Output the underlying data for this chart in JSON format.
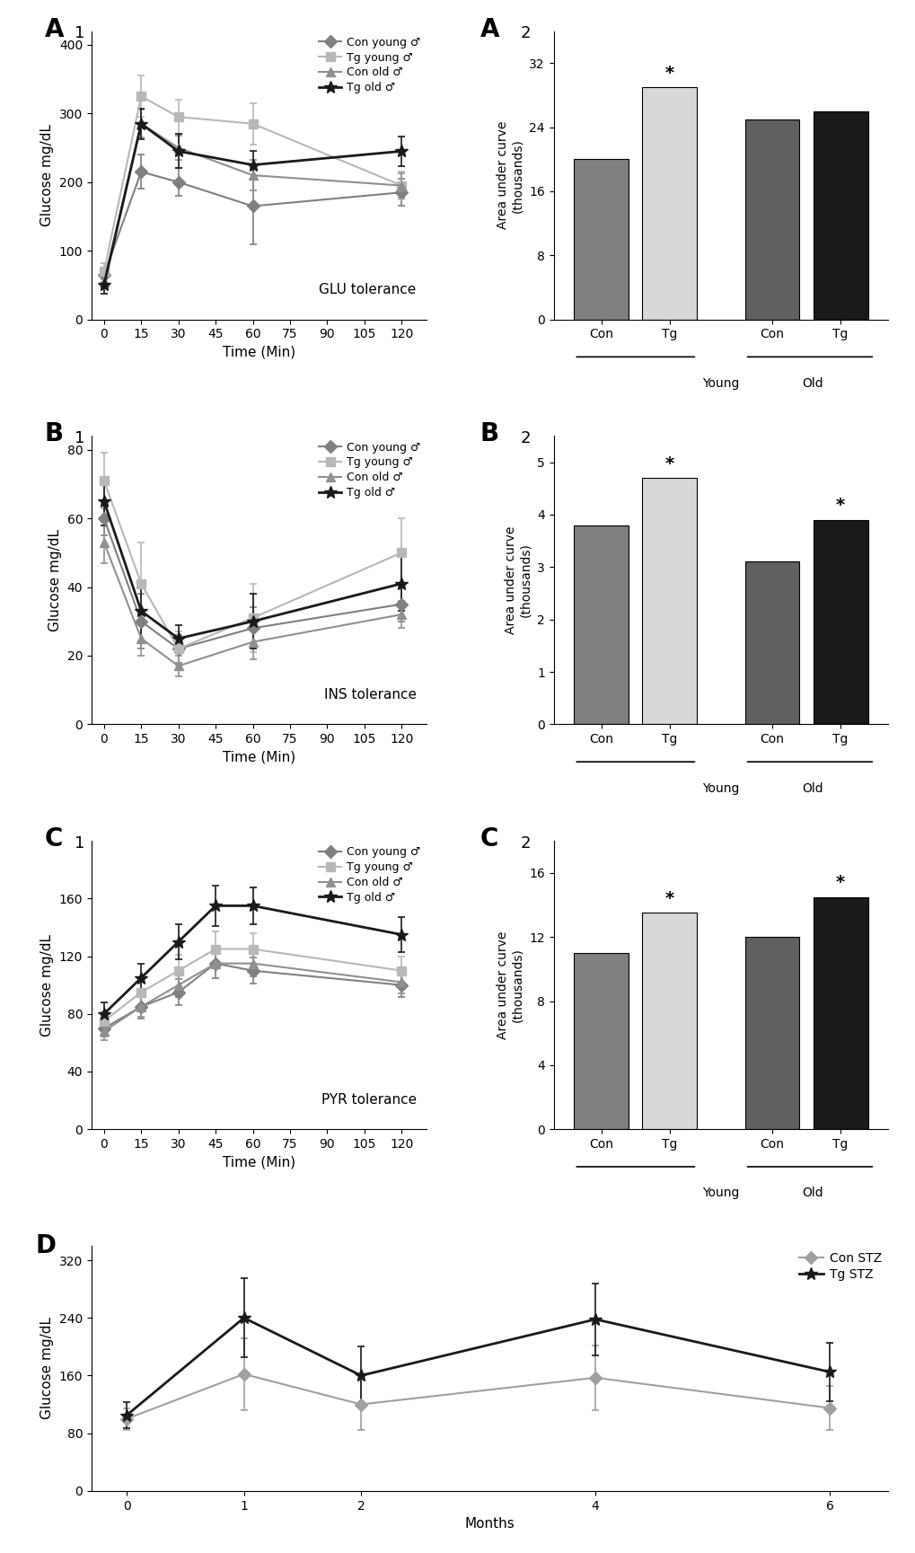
{
  "A1": {
    "xlabel": "Time (Min)",
    "ylabel": "Glucose mg/dL",
    "label": "GLU tolerance",
    "x": [
      0,
      15,
      30,
      60,
      120
    ],
    "series": {
      "Con young": {
        "y": [
          65,
          215,
          200,
          165,
          185
        ],
        "err": [
          10,
          25,
          20,
          55,
          20
        ],
        "color": "#808080",
        "marker": "D",
        "lw": 1.5
      },
      "Tg young": {
        "y": [
          70,
          325,
          295,
          285,
          195
        ],
        "err": [
          12,
          30,
          25,
          30,
          20
        ],
        "color": "#b8b8b8",
        "marker": "s",
        "lw": 1.5
      },
      "Con old": {
        "y": [
          55,
          285,
          250,
          210,
          195
        ],
        "err": [
          8,
          20,
          18,
          22,
          18
        ],
        "color": "#909090",
        "marker": "^",
        "lw": 1.5
      },
      "Tg old": {
        "y": [
          50,
          285,
          245,
          225,
          245
        ],
        "err": [
          12,
          22,
          25,
          20,
          22
        ],
        "color": "#1a1a1a",
        "marker": "*",
        "lw": 2.0
      }
    },
    "ylim": [
      0,
      420
    ],
    "yticks": [
      0,
      100,
      200,
      300,
      400
    ]
  },
  "A2": {
    "ylabel": "Area under curve\n(thousands)",
    "categories": [
      "Con",
      "Tg",
      "Con",
      "Tg"
    ],
    "values": [
      20,
      29,
      25,
      26
    ],
    "colors": [
      "#808080",
      "#d8d8d8",
      "#606060",
      "#1a1a1a"
    ],
    "star": [
      false,
      true,
      false,
      false
    ],
    "ylim": [
      0,
      36
    ],
    "yticks": [
      0,
      8,
      16,
      24,
      32
    ],
    "group_labels": [
      "Young",
      "Old"
    ]
  },
  "B1": {
    "xlabel": "Time (Min)",
    "ylabel": "Glucose mg/dL",
    "label": "INS tolerance",
    "x": [
      0,
      15,
      30,
      60,
      120
    ],
    "series": {
      "Con young": {
        "y": [
          60,
          30,
          22,
          28,
          35
        ],
        "err": [
          5,
          8,
          4,
          6,
          5
        ],
        "color": "#808080",
        "marker": "D",
        "lw": 1.5
      },
      "Tg young": {
        "y": [
          71,
          41,
          22,
          31,
          50
        ],
        "err": [
          8,
          12,
          5,
          10,
          10
        ],
        "color": "#b8b8b8",
        "marker": "s",
        "lw": 1.5
      },
      "Con old": {
        "y": [
          53,
          25,
          17,
          24,
          32
        ],
        "err": [
          6,
          5,
          3,
          5,
          4
        ],
        "color": "#909090",
        "marker": "^",
        "lw": 1.5
      },
      "Tg old": {
        "y": [
          65,
          33,
          25,
          30,
          41
        ],
        "err": [
          7,
          9,
          4,
          8,
          8
        ],
        "color": "#1a1a1a",
        "marker": "*",
        "lw": 2.0
      }
    },
    "ylim": [
      0,
      84
    ],
    "yticks": [
      0,
      20,
      40,
      60,
      80
    ]
  },
  "B2": {
    "ylabel": "Area under curve\n(thousands)",
    "categories": [
      "Con",
      "Tg",
      "Con",
      "Tg"
    ],
    "values": [
      3.8,
      4.7,
      3.1,
      3.9
    ],
    "colors": [
      "#808080",
      "#d8d8d8",
      "#606060",
      "#1a1a1a"
    ],
    "star": [
      false,
      true,
      false,
      true
    ],
    "ylim": [
      0,
      5.5
    ],
    "yticks": [
      0,
      1,
      2,
      3,
      4,
      5
    ],
    "group_labels": [
      "Young",
      "Old"
    ]
  },
  "C1": {
    "xlabel": "Time (Min)",
    "ylabel": "Glucose mg/dL",
    "label": "PYR tolerance",
    "x": [
      0,
      15,
      30,
      45,
      60,
      120
    ],
    "series": {
      "Con young": {
        "y": [
          70,
          85,
          95,
          115,
          110,
          100
        ],
        "err": [
          6,
          8,
          9,
          10,
          9,
          8
        ],
        "color": "#808080",
        "marker": "D",
        "lw": 1.5
      },
      "Tg young": {
        "y": [
          75,
          95,
          110,
          125,
          125,
          110
        ],
        "err": [
          7,
          9,
          11,
          12,
          11,
          10
        ],
        "color": "#b8b8b8",
        "marker": "s",
        "lw": 1.5
      },
      "Con old": {
        "y": [
          68,
          85,
          100,
          115,
          115,
          102
        ],
        "err": [
          6,
          7,
          8,
          10,
          9,
          8
        ],
        "color": "#909090",
        "marker": "^",
        "lw": 1.5
      },
      "Tg old": {
        "y": [
          80,
          105,
          130,
          155,
          155,
          135
        ],
        "err": [
          8,
          10,
          12,
          14,
          13,
          12
        ],
        "color": "#1a1a1a",
        "marker": "*",
        "lw": 2.0
      }
    },
    "ylim": [
      0,
      200
    ],
    "yticks": [
      0,
      40,
      80,
      120,
      160
    ]
  },
  "C2": {
    "ylabel": "Area under curve\n(thousands)",
    "categories": [
      "Con",
      "Tg",
      "Con",
      "Tg"
    ],
    "values": [
      11,
      13.5,
      12,
      14.5
    ],
    "colors": [
      "#808080",
      "#d8d8d8",
      "#606060",
      "#1a1a1a"
    ],
    "star": [
      false,
      true,
      false,
      true
    ],
    "ylim": [
      0,
      18
    ],
    "yticks": [
      0,
      4,
      8,
      12,
      16
    ],
    "group_labels": [
      "Young",
      "Old"
    ]
  },
  "D": {
    "xlabel": "Months",
    "ylabel": "Glucose mg/dL",
    "x": [
      0,
      1,
      2,
      4,
      6
    ],
    "series": {
      "Con STZ": {
        "y": [
          100,
          162,
          120,
          157,
          115
        ],
        "err": [
          15,
          50,
          35,
          45,
          30
        ],
        "color": "#a0a0a0",
        "marker": "D",
        "lw": 1.5
      },
      "Tg STZ": {
        "y": [
          105,
          240,
          160,
          238,
          165
        ],
        "err": [
          18,
          55,
          40,
          50,
          40
        ],
        "color": "#1a1a1a",
        "marker": "*",
        "lw": 2.0
      }
    },
    "ylim": [
      0,
      340
    ],
    "yticks": [
      0,
      80,
      160,
      240,
      320
    ]
  },
  "legend_A1": [
    "Con young ♂",
    "Tg young ♂",
    "Con old ♂",
    "Tg old ♂"
  ],
  "legend_B1": [
    "Con young ♂",
    "Tg young ♂",
    "Con old ♂",
    "Tg old ♂"
  ],
  "legend_C1": [
    "Con young ♂",
    "Tg young ♂",
    "Con old ♂",
    "Tg old ♂"
  ],
  "legend_D": [
    "Con STZ",
    "Tg STZ"
  ]
}
